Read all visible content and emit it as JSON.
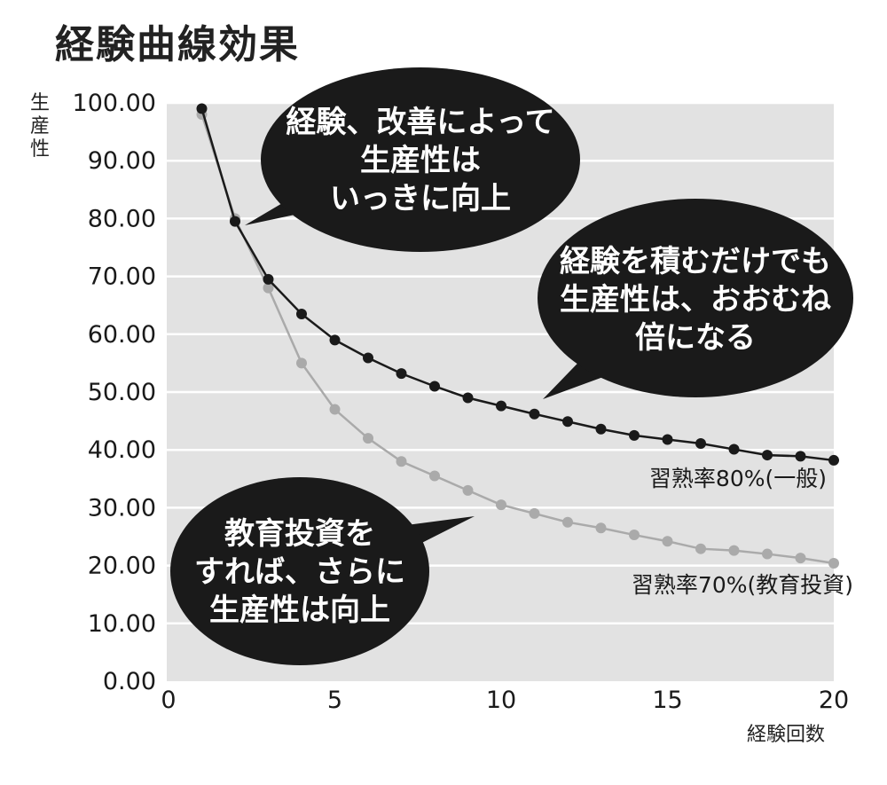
{
  "chart_data": {
    "type": "line",
    "title": "経験曲線効果",
    "ylabel": "生産性",
    "xlabel": "経験回数",
    "xlim": [
      0,
      20
    ],
    "ylim": [
      0,
      100
    ],
    "x_ticks": [
      "0",
      "5",
      "10",
      "15",
      "20"
    ],
    "y_ticks": [
      "0.00",
      "10.00",
      "20.00",
      "30.00",
      "40.00",
      "50.00",
      "60.00",
      "70.00",
      "80.00",
      "90.00",
      "100.00"
    ],
    "grid": true,
    "x": [
      1,
      2,
      3,
      4,
      5,
      6,
      7,
      8,
      9,
      10,
      11,
      12,
      13,
      14,
      15,
      16,
      17,
      18,
      19,
      20
    ],
    "series": [
      {
        "name": "習熟率80%(一般)",
        "color": "#1a1a1a",
        "values": [
          99,
          79.5,
          69.5,
          63.5,
          59,
          55.9,
          53.2,
          51,
          49,
          47.6,
          46.2,
          44.9,
          43.6,
          42.5,
          41.8,
          41.1,
          40.1,
          39.1,
          38.9,
          38.2
        ]
      },
      {
        "name": "習熟率70%(教育投資)",
        "color": "#aaaaaa",
        "values": [
          98,
          80,
          68,
          55,
          47,
          42,
          38,
          35.5,
          33,
          30.5,
          29,
          27.5,
          26.5,
          25.3,
          24.2,
          22.9,
          22.6,
          22,
          21.3,
          20.4
        ]
      }
    ],
    "annotations": [
      {
        "lines": [
          "経験、改善によって",
          "生産性は",
          "いっきに向上"
        ]
      },
      {
        "lines": [
          "経験を積むだけでも",
          "生産性は、おおむね",
          "倍になる"
        ]
      },
      {
        "lines": [
          "教育投資を",
          "すれば、さらに",
          "生産性は向上"
        ]
      }
    ]
  }
}
